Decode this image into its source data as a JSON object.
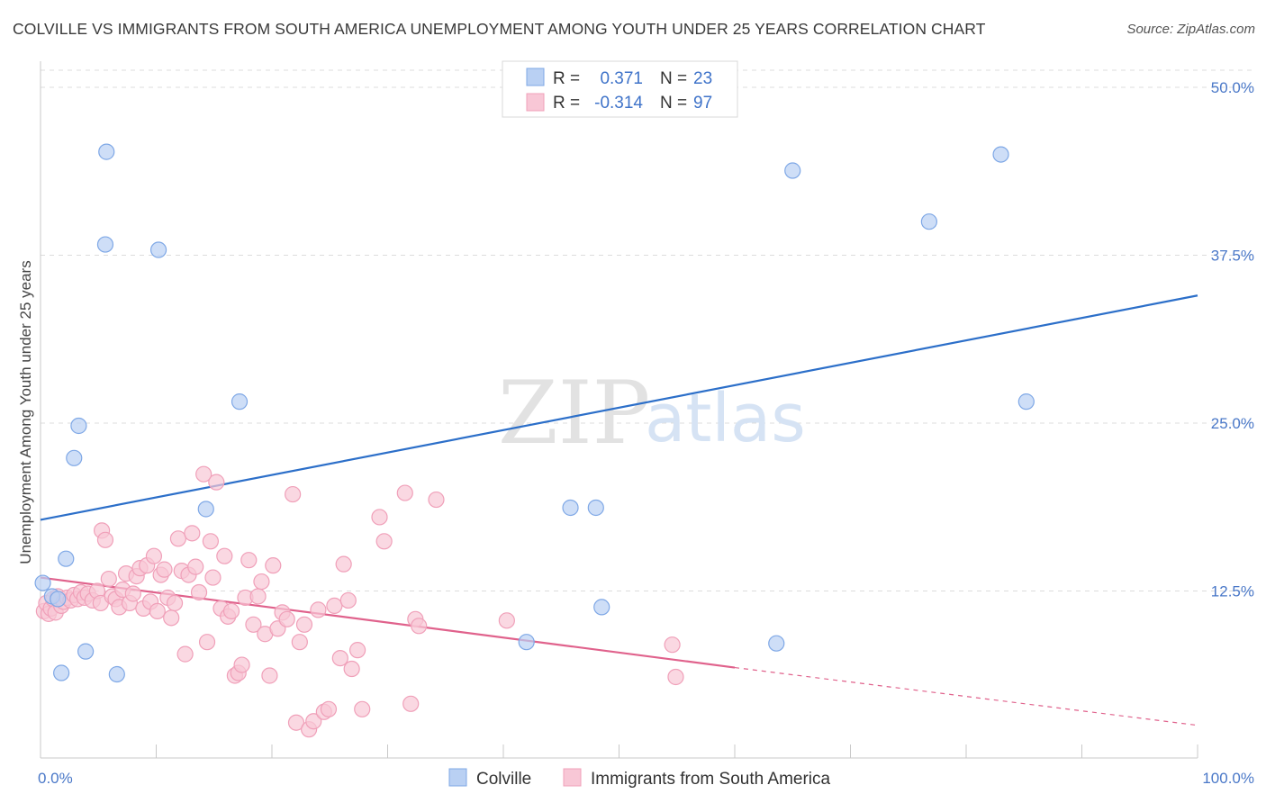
{
  "title": "COLVILLE VS IMMIGRANTS FROM SOUTH AMERICA UNEMPLOYMENT AMONG YOUTH UNDER 25 YEARS CORRELATION CHART",
  "source": "Source: ZipAtlas.com",
  "watermark": {
    "zip": "ZIP",
    "atlas": "atlas"
  },
  "legend": {
    "r_label": "R =",
    "n_label": "N =",
    "rows": [
      {
        "r": "0.371",
        "n": "23"
      },
      {
        "r": "-0.314",
        "n": "97"
      }
    ]
  },
  "chart_data": {
    "type": "scatter",
    "title": "COLVILLE VS IMMIGRANTS FROM SOUTH AMERICA UNEMPLOYMENT AMONG YOUTH UNDER 25 YEARS CORRELATION CHART",
    "xlabel": "",
    "ylabel": "Unemployment Among Youth under 25 years",
    "xlim": [
      0,
      100
    ],
    "ylim": [
      0,
      50
    ],
    "x_tick_labels": [
      "0.0%",
      "100.0%"
    ],
    "y_tick_values": [
      12.5,
      25.0,
      37.5,
      50.0
    ],
    "y_tick_labels": [
      "12.5%",
      "25.0%",
      "37.5%",
      "50.0%"
    ],
    "grid": true,
    "legend_position": "top-center",
    "series": [
      {
        "name": "Colville",
        "color": "#7fa8e6",
        "fill": "#b9d0f3",
        "trend_color": "#2c6fc9",
        "trend": {
          "x0": 0,
          "y0": 17.8,
          "x1": 100,
          "y1": 34.5
        },
        "points": [
          [
            5.7,
            45.2
          ],
          [
            5.6,
            38.3
          ],
          [
            10.2,
            37.9
          ],
          [
            17.2,
            26.6
          ],
          [
            3.3,
            24.8
          ],
          [
            2.9,
            22.4
          ],
          [
            14.3,
            18.6
          ],
          [
            0.2,
            13.1
          ],
          [
            2.2,
            14.9
          ],
          [
            1.0,
            12.1
          ],
          [
            1.5,
            11.9
          ],
          [
            3.9,
            8.0
          ],
          [
            1.8,
            6.4
          ],
          [
            6.6,
            6.3
          ],
          [
            45.8,
            18.7
          ],
          [
            48.0,
            18.7
          ],
          [
            48.5,
            11.3
          ],
          [
            42.0,
            8.7
          ],
          [
            65.0,
            43.8
          ],
          [
            76.8,
            40.0
          ],
          [
            83.0,
            45.0
          ],
          [
            85.2,
            26.6
          ],
          [
            63.6,
            8.6
          ]
        ]
      },
      {
        "name": "Immigrants from South America",
        "color": "#f0a0b9",
        "fill": "#f8c7d6",
        "trend_color": "#e0628c",
        "trend": {
          "x0": 0,
          "y0": 13.5,
          "x1": 60,
          "y1": 6.8
        },
        "trend_dashed": {
          "x0": 60,
          "y0": 6.8,
          "x1": 100,
          "y1": 2.5
        },
        "points": [
          [
            0.3,
            11.0
          ],
          [
            0.5,
            11.6
          ],
          [
            0.7,
            10.8
          ],
          [
            0.9,
            11.2
          ],
          [
            1.1,
            11.9
          ],
          [
            1.3,
            10.9
          ],
          [
            1.5,
            12.1
          ],
          [
            1.8,
            11.4
          ],
          [
            2.0,
            11.7
          ],
          [
            2.3,
            12.0
          ],
          [
            2.6,
            11.8
          ],
          [
            2.9,
            12.2
          ],
          [
            3.2,
            11.9
          ],
          [
            3.5,
            12.4
          ],
          [
            3.8,
            12.0
          ],
          [
            4.1,
            12.3
          ],
          [
            4.5,
            11.8
          ],
          [
            4.9,
            12.5
          ],
          [
            5.2,
            11.6
          ],
          [
            5.3,
            17.0
          ],
          [
            5.6,
            16.3
          ],
          [
            5.9,
            13.4
          ],
          [
            6.2,
            12.1
          ],
          [
            6.5,
            11.9
          ],
          [
            6.8,
            11.3
          ],
          [
            7.1,
            12.6
          ],
          [
            7.4,
            13.8
          ],
          [
            7.7,
            11.6
          ],
          [
            8.0,
            12.3
          ],
          [
            8.3,
            13.6
          ],
          [
            8.6,
            14.2
          ],
          [
            8.9,
            11.2
          ],
          [
            9.2,
            14.4
          ],
          [
            9.5,
            11.7
          ],
          [
            9.8,
            15.1
          ],
          [
            10.1,
            11.0
          ],
          [
            10.4,
            13.7
          ],
          [
            10.7,
            14.1
          ],
          [
            11.0,
            12.0
          ],
          [
            11.3,
            10.5
          ],
          [
            11.6,
            11.6
          ],
          [
            11.9,
            16.4
          ],
          [
            12.2,
            14.0
          ],
          [
            12.5,
            7.8
          ],
          [
            12.8,
            13.7
          ],
          [
            13.1,
            16.8
          ],
          [
            13.4,
            14.3
          ],
          [
            13.7,
            12.4
          ],
          [
            14.1,
            21.2
          ],
          [
            14.4,
            8.7
          ],
          [
            14.7,
            16.2
          ],
          [
            14.9,
            13.5
          ],
          [
            15.2,
            20.6
          ],
          [
            15.6,
            11.2
          ],
          [
            15.9,
            15.1
          ],
          [
            16.2,
            10.6
          ],
          [
            16.5,
            11.0
          ],
          [
            16.8,
            6.2
          ],
          [
            17.1,
            6.4
          ],
          [
            17.4,
            7.0
          ],
          [
            17.7,
            12.0
          ],
          [
            18.0,
            14.8
          ],
          [
            18.4,
            10.0
          ],
          [
            18.8,
            12.1
          ],
          [
            19.1,
            13.2
          ],
          [
            19.4,
            9.3
          ],
          [
            19.8,
            6.2
          ],
          [
            20.1,
            14.4
          ],
          [
            20.5,
            9.7
          ],
          [
            20.9,
            10.9
          ],
          [
            21.3,
            10.4
          ],
          [
            21.8,
            19.7
          ],
          [
            22.1,
            2.7
          ],
          [
            22.4,
            8.7
          ],
          [
            22.8,
            10.0
          ],
          [
            23.2,
            2.2
          ],
          [
            23.6,
            2.8
          ],
          [
            24.0,
            11.1
          ],
          [
            24.5,
            3.5
          ],
          [
            24.9,
            3.7
          ],
          [
            25.4,
            11.4
          ],
          [
            25.9,
            7.5
          ],
          [
            26.2,
            14.5
          ],
          [
            26.6,
            11.8
          ],
          [
            26.9,
            6.7
          ],
          [
            27.4,
            8.1
          ],
          [
            27.8,
            3.7
          ],
          [
            29.3,
            18.0
          ],
          [
            29.7,
            16.2
          ],
          [
            32.0,
            4.1
          ],
          [
            32.4,
            10.4
          ],
          [
            32.7,
            9.9
          ],
          [
            34.2,
            19.3
          ],
          [
            40.3,
            10.3
          ],
          [
            54.6,
            8.5
          ],
          [
            54.9,
            6.1
          ],
          [
            31.5,
            19.8
          ]
        ]
      }
    ]
  }
}
